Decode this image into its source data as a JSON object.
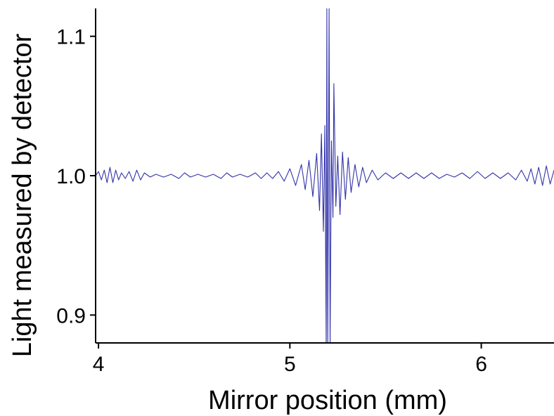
{
  "chart_data": {
    "type": "line",
    "title": "",
    "xlabel": "Mirror position (mm)",
    "ylabel": "Light measured by detector",
    "xlim": [
      3.985,
      6.38
    ],
    "ylim": [
      0.88,
      1.12
    ],
    "x_ticks": [
      {
        "value": 4,
        "label": "4"
      },
      {
        "value": 5,
        "label": "5"
      },
      {
        "value": 6,
        "label": "6"
      }
    ],
    "y_ticks": [
      {
        "value": 0.9,
        "label": "0.9"
      },
      {
        "value": 1.0,
        "label": "1.0"
      },
      {
        "value": 1.1,
        "label": "1.1"
      }
    ],
    "grid": false,
    "line_color": "#3333aa",
    "series": [
      {
        "points": [
          [
            3.985,
            1.0
          ],
          [
            4.0,
            1.003
          ],
          [
            4.015,
            0.997
          ],
          [
            4.03,
            1.004
          ],
          [
            4.045,
            0.995
          ],
          [
            4.06,
            1.006
          ],
          [
            4.075,
            0.995
          ],
          [
            4.09,
            1.004
          ],
          [
            4.105,
            0.997
          ],
          [
            4.12,
            1.002
          ],
          [
            4.14,
            0.998
          ],
          [
            4.16,
            1.003
          ],
          [
            4.18,
            0.996
          ],
          [
            4.2,
            1.004
          ],
          [
            4.22,
            0.997
          ],
          [
            4.24,
            1.002
          ],
          [
            4.27,
            0.999
          ],
          [
            4.3,
            1.001
          ],
          [
            4.34,
            0.999
          ],
          [
            4.38,
            1.001
          ],
          [
            4.42,
            0.998
          ],
          [
            4.45,
            1.002
          ],
          [
            4.48,
            0.999
          ],
          [
            4.52,
            1.001
          ],
          [
            4.56,
            0.999
          ],
          [
            4.6,
            1.001
          ],
          [
            4.64,
            0.998
          ],
          [
            4.67,
            1.002
          ],
          [
            4.7,
            0.999
          ],
          [
            4.74,
            1.001
          ],
          [
            4.78,
            0.999
          ],
          [
            4.82,
            1.002
          ],
          [
            4.85,
            0.998
          ],
          [
            4.88,
            1.002
          ],
          [
            4.91,
            0.998
          ],
          [
            4.94,
            1.003
          ],
          [
            4.97,
            0.996
          ],
          [
            5.0,
            1.005
          ],
          [
            5.03,
            0.993
          ],
          [
            5.06,
            1.008
          ],
          [
            5.08,
            0.99
          ],
          [
            5.1,
            1.011
          ],
          [
            5.12,
            0.985
          ],
          [
            5.14,
            1.016
          ],
          [
            5.155,
            0.975
          ],
          [
            5.165,
            1.03
          ],
          [
            5.175,
            0.96
          ],
          [
            5.183,
            1.036
          ],
          [
            5.19,
            0.875
          ],
          [
            5.193,
            1.12
          ],
          [
            5.198,
            0.875
          ],
          [
            5.205,
            1.12
          ],
          [
            5.21,
            0.875
          ],
          [
            5.217,
            1.025
          ],
          [
            5.225,
            0.97
          ],
          [
            5.23,
            1.066
          ],
          [
            5.24,
            0.978
          ],
          [
            5.25,
            1.014
          ],
          [
            5.262,
            0.972
          ],
          [
            5.275,
            1.017
          ],
          [
            5.29,
            0.983
          ],
          [
            5.305,
            1.013
          ],
          [
            5.32,
            0.988
          ],
          [
            5.34,
            1.008
          ],
          [
            5.36,
            0.992
          ],
          [
            5.38,
            1.006
          ],
          [
            5.4,
            0.995
          ],
          [
            5.43,
            1.004
          ],
          [
            5.46,
            0.997
          ],
          [
            5.5,
            1.002
          ],
          [
            5.54,
            0.998
          ],
          [
            5.58,
            1.002
          ],
          [
            5.62,
            0.998
          ],
          [
            5.66,
            1.002
          ],
          [
            5.7,
            0.998
          ],
          [
            5.74,
            1.002
          ],
          [
            5.78,
            0.998
          ],
          [
            5.82,
            1.001
          ],
          [
            5.86,
            0.999
          ],
          [
            5.9,
            1.002
          ],
          [
            5.94,
            0.998
          ],
          [
            5.98,
            1.003
          ],
          [
            6.02,
            0.998
          ],
          [
            6.06,
            1.002
          ],
          [
            6.1,
            0.998
          ],
          [
            6.14,
            1.002
          ],
          [
            6.18,
            0.997
          ],
          [
            6.21,
            1.004
          ],
          [
            6.24,
            0.996
          ],
          [
            6.26,
            1.005
          ],
          [
            6.28,
            0.994
          ],
          [
            6.3,
            1.006
          ],
          [
            6.32,
            0.993
          ],
          [
            6.34,
            1.007
          ],
          [
            6.36,
            0.994
          ],
          [
            6.38,
            1.004
          ]
        ]
      }
    ]
  }
}
